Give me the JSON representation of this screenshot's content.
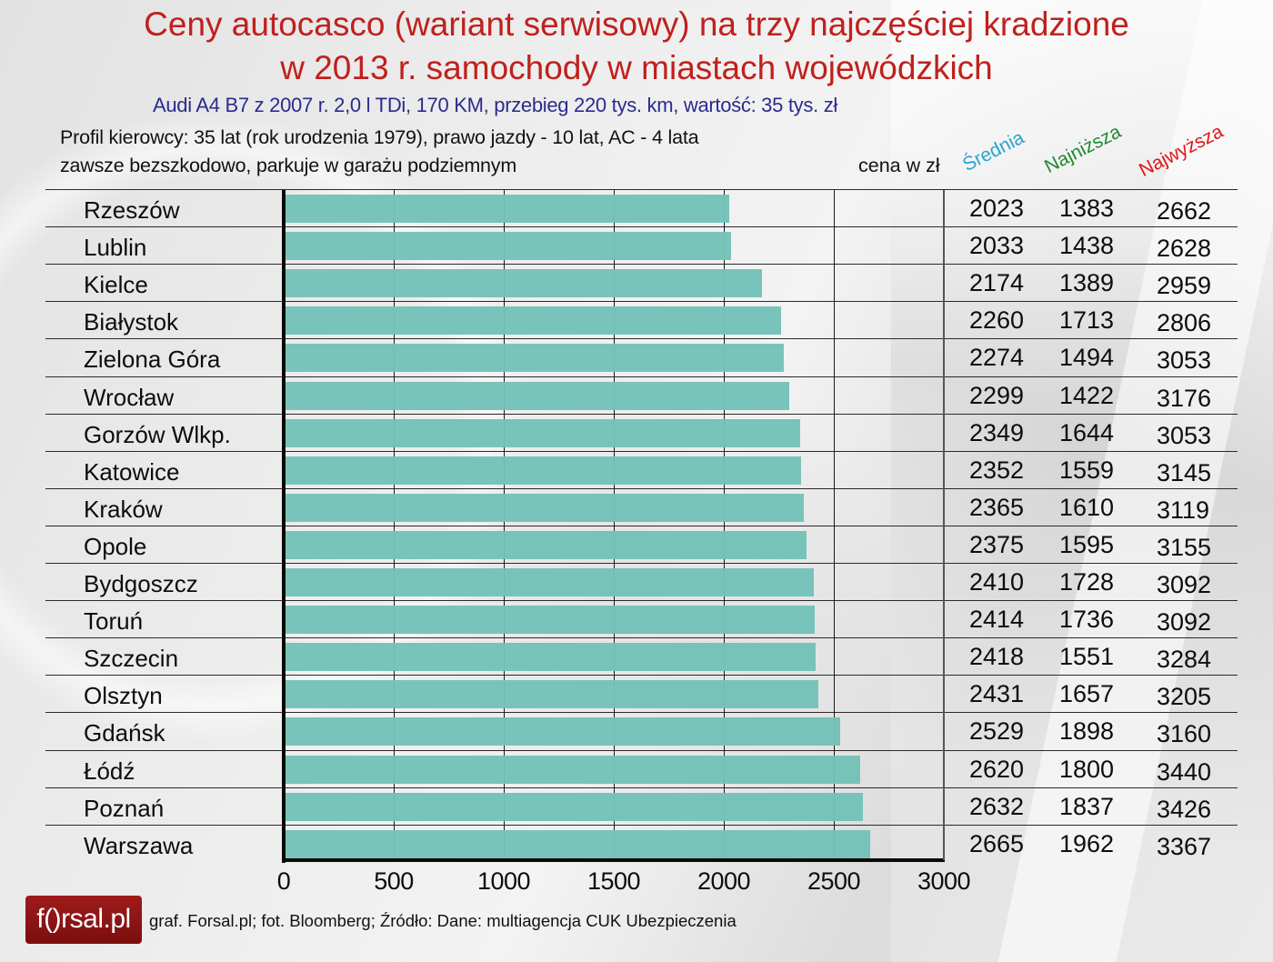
{
  "header": {
    "title_line1": "Ceny autocasco (wariant serwisowy) na trzy najczęściej kradzione",
    "title_line2": "w 2013 r. samochody w miastach wojewódzkich",
    "subtitle": "Audi A4 B7 z 2007 r. 2,0 l TDi, 170 KM, przebieg 220 tys. km, wartość: 35 tys. zł",
    "profile_line1": "Profil kierowcy: 35 lat (rok urodzenia 1979), prawo jazdy - 10 lat, AC - 4 lata",
    "profile_line2": "zawsze bezszkodowo, parkuje w garażu podziemnym",
    "unit_label": "cena w zł"
  },
  "columns": {
    "avg": "Średnia",
    "min": "Najniższa",
    "max": "Najwyższa"
  },
  "colors": {
    "title": "#c0201c",
    "subtitle": "#2b2b8e",
    "bar": "#74c2b7",
    "avg_header": "#2aa3d0",
    "min_header": "#1f8a2e",
    "max_header": "#e0141a"
  },
  "footer": {
    "logo_text": "f()rsal.pl",
    "credits": "graf. Forsal.pl;   fot. Bloomberg; Źródło: Dane: multiagencja CUK Ubezpieczenia"
  },
  "chart_data": {
    "type": "bar",
    "orientation": "horizontal",
    "title": "Ceny autocasco (wariant serwisowy) na trzy najczęściej kradzione w 2013 r. samochody w miastach wojewódzkich",
    "subtitle": "Audi A4 B7 z 2007 r. 2,0 l TDi, 170 KM, przebieg 220 tys. km, wartość: 35 tys. zł",
    "xlabel": "cena w zł",
    "ylabel": "",
    "xlim": [
      0,
      3000
    ],
    "xticks": [
      "0",
      "500",
      "1000",
      "1500",
      "2000",
      "2500",
      "3000"
    ],
    "grid": true,
    "bar_series": "Średnia",
    "categories": [
      "Rzeszów",
      "Lublin",
      "Kielce",
      "Białystok",
      "Zielona Góra",
      "Wrocław",
      "Gorzów Wlkp.",
      "Katowice",
      "Kraków",
      "Opole",
      "Bydgoszcz",
      "Toruń",
      "Szczecin",
      "Olsztyn",
      "Gdańsk",
      "Łódź",
      "Poznań",
      "Warszawa"
    ],
    "series": [
      {
        "name": "Średnia",
        "values": [
          2023,
          2033,
          2174,
          2260,
          2274,
          2299,
          2349,
          2352,
          2365,
          2375,
          2410,
          2414,
          2418,
          2431,
          2529,
          2620,
          2632,
          2665
        ]
      },
      {
        "name": "Najniższa",
        "values": [
          1383,
          1438,
          1389,
          1713,
          1494,
          1422,
          1644,
          1559,
          1610,
          1595,
          1728,
          1736,
          1551,
          1657,
          1898,
          1800,
          1837,
          1962
        ]
      },
      {
        "name": "Najwyższa",
        "values": [
          2662,
          2628,
          2959,
          2806,
          3053,
          3176,
          3053,
          3145,
          3119,
          3155,
          3092,
          3092,
          3284,
          3205,
          3160,
          3440,
          3426,
          3367
        ]
      }
    ]
  }
}
